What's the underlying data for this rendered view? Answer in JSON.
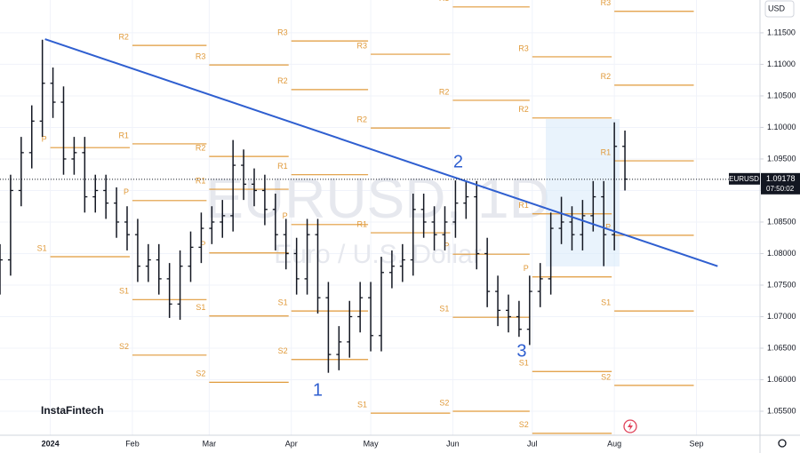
{
  "chart_data": {
    "type": "ohlc",
    "symbol": "EURUSD",
    "watermark": "EURUSD, 1D",
    "watermark_subtitle": "Euro / U.S. Dollar",
    "currency": "USD",
    "brand": "InstaFintech",
    "last_price": 1.09178,
    "countdown": "07:50:02",
    "color": "#131722",
    "grid": true,
    "xlim": [
      -19,
      268
    ],
    "xticks": [
      {
        "value": 0,
        "label": "2024"
      },
      {
        "value": 31,
        "label": "Feb"
      },
      {
        "value": 60,
        "label": "Mar"
      },
      {
        "value": 91,
        "label": "Apr"
      },
      {
        "value": 121,
        "label": "May"
      },
      {
        "value": 152,
        "label": "Jun"
      },
      {
        "value": 182,
        "label": "Jul"
      },
      {
        "value": 213,
        "label": "Aug"
      },
      {
        "value": 244,
        "label": "Sep"
      }
    ],
    "ylim": [
      1.0512,
      1.1202
    ],
    "yticks": [
      {
        "value": 1.055,
        "label": "1.05500"
      },
      {
        "value": 1.06,
        "label": "1.06000"
      },
      {
        "value": 1.065,
        "label": "1.06500"
      },
      {
        "value": 1.07,
        "label": "1.07000"
      },
      {
        "value": 1.075,
        "label": "1.07500"
      },
      {
        "value": 1.08,
        "label": "1.08000"
      },
      {
        "value": 1.085,
        "label": "1.08500"
      },
      {
        "value": 1.09,
        "label": "1.09000"
      },
      {
        "value": 1.095,
        "label": "1.09500"
      },
      {
        "value": 1.1,
        "label": "1.10000"
      },
      {
        "value": 1.105,
        "label": "1.10500"
      },
      {
        "value": 1.11,
        "label": "1.11000"
      },
      {
        "value": 1.115,
        "label": "1.11500"
      }
    ],
    "x": [
      -19,
      -15,
      -11,
      -7,
      -3,
      1,
      5,
      9,
      13,
      17,
      21,
      25,
      29,
      33,
      37,
      41,
      45,
      49,
      53,
      57,
      61,
      65,
      69,
      73,
      77,
      81,
      85,
      89,
      93,
      97,
      101,
      105,
      109,
      113,
      117,
      121,
      125,
      129,
      133,
      137,
      141,
      145,
      149,
      153,
      157,
      161,
      165,
      169,
      173,
      177,
      181,
      185,
      189,
      193,
      197,
      201,
      205,
      209,
      213,
      217
    ],
    "open": [
      1.076,
      1.079,
      1.09,
      1.096,
      1.101,
      1.107,
      1.104,
      1.095,
      1.096,
      1.089,
      1.09,
      1.088,
      1.085,
      1.083,
      1.078,
      1.079,
      1.076,
      1.072,
      1.078,
      1.081,
      1.084,
      1.085,
      1.086,
      1.094,
      1.091,
      1.09,
      1.087,
      1.083,
      1.08,
      1.076,
      1.083,
      1.073,
      1.064,
      1.066,
      1.07,
      1.073,
      1.067,
      1.077,
      1.078,
      1.079,
      1.087,
      1.085,
      1.083,
      1.085,
      1.088,
      1.089,
      1.08,
      1.074,
      1.071,
      1.07,
      1.068,
      1.074,
      1.076,
      1.084,
      1.085,
      1.083,
      1.086,
      1.089,
      1.083,
      1.097
    ],
    "high": [
      1.0815,
      1.0925,
      1.0985,
      1.1035,
      1.1139,
      1.1095,
      1.1065,
      1.0985,
      1.0985,
      1.0925,
      1.0925,
      1.0905,
      1.0875,
      1.0855,
      1.0815,
      1.0815,
      1.0785,
      1.0805,
      1.0835,
      1.0865,
      1.0875,
      1.0885,
      1.098,
      1.0965,
      1.0935,
      1.0925,
      1.0895,
      1.0855,
      1.0825,
      1.0855,
      1.0855,
      1.0755,
      1.0685,
      1.0725,
      1.0755,
      1.0755,
      1.0795,
      1.0805,
      1.0815,
      1.0895,
      1.0895,
      1.0875,
      1.0875,
      1.0916,
      1.0915,
      1.0915,
      1.0825,
      1.0765,
      1.0735,
      1.0725,
      1.0765,
      1.0785,
      1.0865,
      1.089,
      1.0875,
      1.0885,
      1.0915,
      1.0915,
      1.1008,
      1.0995
    ],
    "low": [
      1.0735,
      1.0765,
      1.0875,
      1.0935,
      1.0985,
      1.1015,
      1.0925,
      1.0925,
      1.0865,
      1.0865,
      1.0855,
      1.0825,
      1.0805,
      1.0755,
      1.0755,
      1.0735,
      1.0698,
      1.0695,
      1.0755,
      1.0785,
      1.0815,
      1.0825,
      1.0835,
      1.0885,
      1.0875,
      1.0845,
      1.0805,
      1.0775,
      1.0735,
      1.0735,
      1.0705,
      1.0611,
      1.0615,
      1.0635,
      1.0675,
      1.0645,
      1.0645,
      1.0745,
      1.0755,
      1.0765,
      1.0825,
      1.0805,
      1.0805,
      1.0825,
      1.0855,
      1.0775,
      1.0715,
      1.0685,
      1.0675,
      1.0668,
      1.0655,
      1.0715,
      1.0735,
      1.0815,
      1.0805,
      1.0805,
      1.0835,
      1.078,
      1.0805,
      1.09
    ],
    "close": [
      1.079,
      1.09,
      1.096,
      1.101,
      1.107,
      1.104,
      1.095,
      1.096,
      1.089,
      1.09,
      1.088,
      1.085,
      1.083,
      1.078,
      1.079,
      1.076,
      1.072,
      1.078,
      1.081,
      1.084,
      1.085,
      1.086,
      1.094,
      1.091,
      1.09,
      1.087,
      1.083,
      1.08,
      1.076,
      1.083,
      1.073,
      1.064,
      1.066,
      1.07,
      1.073,
      1.067,
      1.077,
      1.078,
      1.079,
      1.087,
      1.085,
      1.083,
      1.085,
      1.088,
      1.089,
      1.08,
      1.074,
      1.071,
      1.07,
      1.068,
      1.074,
      1.076,
      1.084,
      1.085,
      1.083,
      1.086,
      1.089,
      1.083,
      1.097,
      1.0918
    ],
    "trendline": {
      "color": "#2f5fd0",
      "x": [
        -2,
        252
      ],
      "values": [
        1.114,
        1.078
      ]
    },
    "pivot_color": "#e09a3a",
    "pivots": [
      {
        "label": "P",
        "value": 1.0968,
        "x": [
          0,
          30
        ]
      },
      {
        "label": "S1",
        "value": 1.0795,
        "x": [
          0,
          30
        ]
      },
      {
        "label": "R2",
        "value": 1.113,
        "x": [
          31,
          59
        ]
      },
      {
        "label": "R1",
        "value": 1.0974,
        "x": [
          31,
          59
        ]
      },
      {
        "label": "P",
        "value": 1.0884,
        "x": [
          31,
          59
        ]
      },
      {
        "label": "S1",
        "value": 1.0727,
        "x": [
          31,
          59
        ]
      },
      {
        "label": "S2",
        "value": 1.0639,
        "x": [
          31,
          59
        ]
      },
      {
        "label": "R3",
        "value": 1.1099,
        "x": [
          60,
          90
        ]
      },
      {
        "label": "R2",
        "value": 1.0954,
        "x": [
          60,
          90
        ]
      },
      {
        "label": "R1",
        "value": 1.0902,
        "x": [
          60,
          90
        ]
      },
      {
        "label": "P",
        "value": 1.0801,
        "x": [
          60,
          90
        ]
      },
      {
        "label": "S1",
        "value": 1.0701,
        "x": [
          60,
          90
        ]
      },
      {
        "label": "S2",
        "value": 1.0596,
        "x": [
          60,
          90
        ]
      },
      {
        "label": "R3",
        "value": 1.1137,
        "x": [
          91,
          120
        ]
      },
      {
        "label": "R2",
        "value": 1.106,
        "x": [
          91,
          120
        ]
      },
      {
        "label": "R1",
        "value": 1.0925,
        "x": [
          91,
          120
        ]
      },
      {
        "label": "P",
        "value": 1.0846,
        "x": [
          91,
          120
        ]
      },
      {
        "label": "S1",
        "value": 1.0709,
        "x": [
          91,
          120
        ]
      },
      {
        "label": "S2",
        "value": 1.0632,
        "x": [
          91,
          120
        ]
      },
      {
        "label": "R3",
        "value": 1.1116,
        "x": [
          121,
          151
        ]
      },
      {
        "label": "R2",
        "value": 1.0999,
        "x": [
          121,
          151
        ]
      },
      {
        "label": "R1",
        "value": 1.0833,
        "x": [
          121,
          151
        ]
      },
      {
        "label": "S1",
        "value": 1.0547,
        "x": [
          121,
          151
        ]
      },
      {
        "label": "R3",
        "value": 1.1191,
        "x": [
          152,
          181
        ]
      },
      {
        "label": "R2",
        "value": 1.1043,
        "x": [
          152,
          181
        ]
      },
      {
        "label": "P",
        "value": 1.0799,
        "x": [
          152,
          181
        ]
      },
      {
        "label": "S1",
        "value": 1.0699,
        "x": [
          152,
          181
        ]
      },
      {
        "label": "S2",
        "value": 1.055,
        "x": [
          152,
          181
        ]
      },
      {
        "label": "R3",
        "value": 1.1112,
        "x": [
          182,
          212
        ]
      },
      {
        "label": "R2",
        "value": 1.1015,
        "x": [
          182,
          212
        ]
      },
      {
        "label": "R1",
        "value": 1.0863,
        "x": [
          182,
          212
        ]
      },
      {
        "label": "P",
        "value": 1.0763,
        "x": [
          182,
          212
        ]
      },
      {
        "label": "S1",
        "value": 1.0613,
        "x": [
          182,
          212
        ]
      },
      {
        "label": "S2",
        "value": 1.0515,
        "x": [
          182,
          212
        ]
      },
      {
        "label": "R3",
        "value": 1.1184,
        "x": [
          213,
          243
        ]
      },
      {
        "label": "R2",
        "value": 1.1067,
        "x": [
          213,
          243
        ]
      },
      {
        "label": "R1",
        "value": 1.0947,
        "x": [
          213,
          243
        ]
      },
      {
        "label": "P",
        "value": 1.0829,
        "x": [
          213,
          243
        ]
      },
      {
        "label": "S1",
        "value": 1.0709,
        "x": [
          213,
          243
        ]
      },
      {
        "label": "S2",
        "value": 1.0591,
        "x": [
          213,
          243
        ]
      }
    ],
    "annotations": [
      {
        "text": "1",
        "x": 101,
        "y": 1.0582
      },
      {
        "text": "2",
        "x": 154,
        "y": 1.0944
      },
      {
        "text": "3",
        "x": 178,
        "y": 1.0644
      }
    ]
  }
}
